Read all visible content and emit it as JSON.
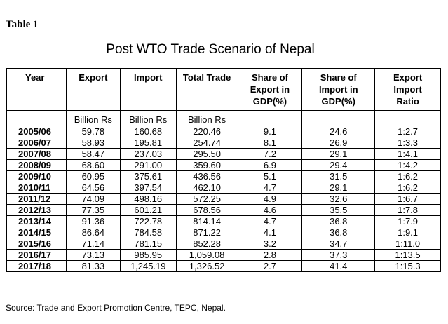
{
  "label": "Table 1",
  "title": "Post WTO Trade Scenario of Nepal",
  "headers": [
    [
      "Year"
    ],
    [
      "Export"
    ],
    [
      "Import"
    ],
    [
      "Total Trade"
    ],
    [
      "Share of",
      "Export in",
      "GDP(%)"
    ],
    [
      "Share of",
      "Import in",
      "GDP(%)"
    ],
    [
      "Export",
      "Import",
      "Ratio"
    ]
  ],
  "units": [
    "",
    "Billion Rs",
    "Billion Rs",
    "Billion Rs",
    "",
    "",
    ""
  ],
  "rows": [
    [
      "2005/06",
      "59.78",
      "160.68",
      "220.46",
      "9.1",
      "24.6",
      "1:2.7"
    ],
    [
      "2006/07",
      "58.93",
      "195.81",
      "254.74",
      "8.1",
      "26.9",
      "1:3.3"
    ],
    [
      "2007/08",
      "58.47",
      "237.03",
      "295.50",
      "7.2",
      "29.1",
      "1:4.1"
    ],
    [
      "2008/09",
      "68.60",
      "291.00",
      "359.60",
      "6.9",
      "29.4",
      "1:4.2"
    ],
    [
      "2009/10",
      "60.95",
      "375.61",
      "436.56",
      "5.1",
      "31.5",
      "1:6.2"
    ],
    [
      "2010/11",
      "64.56",
      "397.54",
      "462.10",
      "4.7",
      "29.1",
      "1:6.2"
    ],
    [
      "2011/12",
      "74.09",
      "498.16",
      "572.25",
      "4.9",
      "32.6",
      "1:6.7"
    ],
    [
      "2012/13",
      "77.35",
      "601.21",
      "678.56",
      "4.6",
      "35.5",
      "1:7.8"
    ],
    [
      "2013/14",
      "91.36",
      "722.78",
      "814.14",
      "4.7",
      "36.8",
      "1:7.9"
    ],
    [
      "2014/15",
      "86.64",
      "784.58",
      "871.22",
      "4.1",
      "36.8",
      "1:9.1"
    ],
    [
      "2015/16",
      "71.14",
      "781.15",
      "852.28",
      "3.2",
      "34.7",
      "1:11.0"
    ],
    [
      "2016/17",
      "73.13",
      "985.95",
      "1,059.08",
      "2.8",
      "37.3",
      "1:13.5"
    ],
    [
      "2017/18",
      "81.33",
      "1,245.19",
      "1,326.52",
      "2.7",
      "41.4",
      "1:15.3"
    ]
  ],
  "source": "Source: Trade and Export Promotion Centre, TEPC, Nepal."
}
